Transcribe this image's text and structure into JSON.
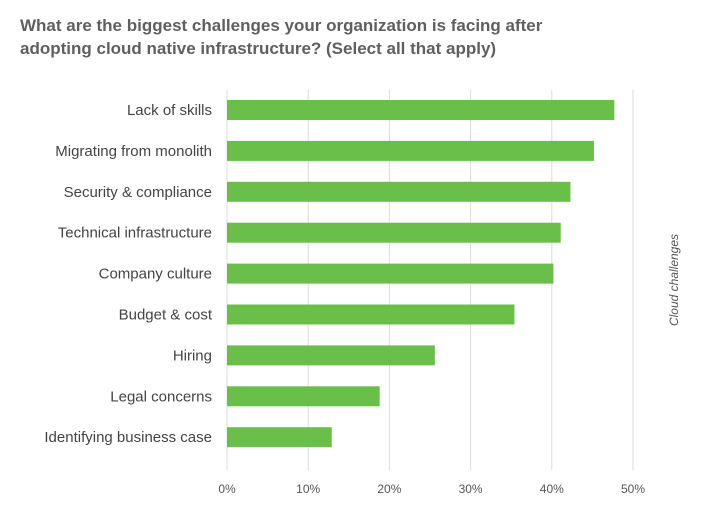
{
  "chart_data": {
    "type": "bar",
    "orientation": "horizontal",
    "title_lines": [
      "What are the biggest challenges your organization is facing after",
      "adopting cloud native infrastructure? (Select all that apply)"
    ],
    "side_label": "Cloud challenges",
    "categories": [
      "Lack of skills",
      "Migrating from monolith",
      "Security & compliance",
      "Technical infrastructure",
      "Company culture",
      "Budget & cost",
      "Hiring",
      "Legal concerns",
      "Identifying business case"
    ],
    "values": [
      47.7,
      45.2,
      42.3,
      41.1,
      40.2,
      35.4,
      25.6,
      18.8,
      12.9
    ],
    "xlim": [
      0,
      50
    ],
    "ticks": [
      0,
      10,
      20,
      30,
      40,
      50
    ],
    "tick_labels": [
      "0%",
      "10%",
      "20%",
      "30%",
      "40%",
      "50%"
    ],
    "grid": "vertical",
    "bar_color": "#6abf4b",
    "grid_color": "#dcdcdc"
  }
}
